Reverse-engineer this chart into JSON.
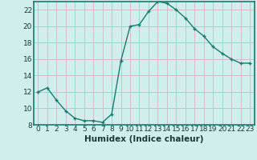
{
  "x": [
    0,
    1,
    2,
    3,
    4,
    5,
    6,
    7,
    8,
    9,
    10,
    11,
    12,
    13,
    14,
    15,
    16,
    17,
    18,
    19,
    20,
    21,
    22,
    23
  ],
  "y": [
    12,
    12.5,
    11,
    9.7,
    8.8,
    8.5,
    8.5,
    8.3,
    9.3,
    15.8,
    20.0,
    20.2,
    21.8,
    23.0,
    22.8,
    22.0,
    21.0,
    19.7,
    18.8,
    17.5,
    16.7,
    16.0,
    15.5,
    15.5
  ],
  "line_color": "#1a7a6e",
  "marker": "+",
  "bg_color": "#d0eeeb",
  "grid_color": "#c8b8c8",
  "xlabel": "Humidex (Indice chaleur)",
  "ylim": [
    8,
    23
  ],
  "yticks": [
    8,
    10,
    12,
    14,
    16,
    18,
    20,
    22
  ],
  "xticks": [
    0,
    1,
    2,
    3,
    4,
    5,
    6,
    7,
    8,
    9,
    10,
    11,
    12,
    13,
    14,
    15,
    16,
    17,
    18,
    19,
    20,
    21,
    22,
    23
  ],
  "tick_fontsize": 6.5,
  "label_fontsize": 7.5
}
